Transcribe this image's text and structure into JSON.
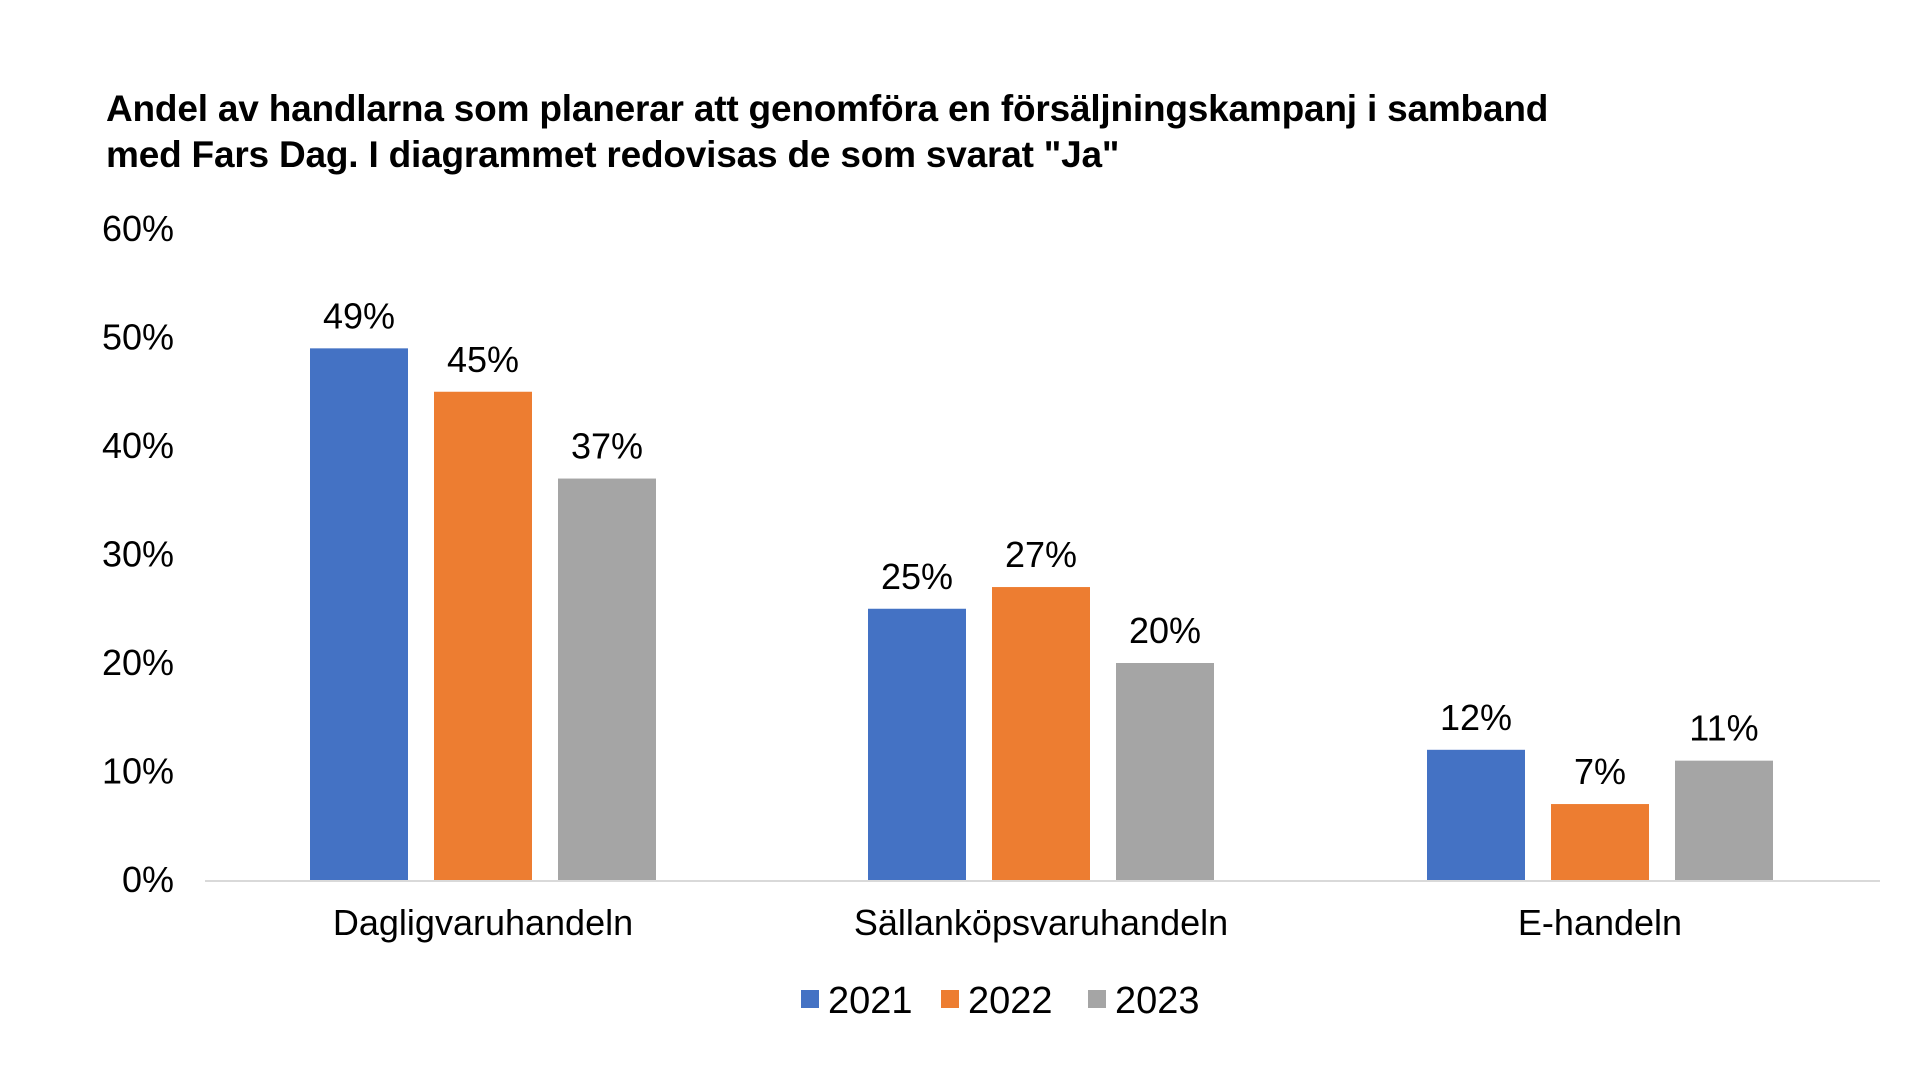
{
  "chart_data": {
    "type": "bar",
    "title_lines": [
      "Andel av handlarna som planerar att genomföra en försäljningskampanj i samband",
      "med Fars Dag. I diagrammet redovisas de som svarat \"Ja\""
    ],
    "categories": [
      "Dagligvaruhandeln",
      "Sällanköpsvaruhandeln",
      "E-handeln"
    ],
    "series": [
      {
        "name": "2021",
        "color": "#4472C4",
        "values": [
          49,
          25,
          12
        ],
        "labels": [
          "49%",
          "25%",
          "12%"
        ]
      },
      {
        "name": "2022",
        "color": "#ED7D31",
        "values": [
          45,
          27,
          7
        ],
        "labels": [
          "45%",
          "27%",
          "7%"
        ]
      },
      {
        "name": "2023",
        "color": "#A5A5A5",
        "values": [
          37,
          20,
          11
        ],
        "labels": [
          "37%",
          "20%",
          "11%"
        ]
      }
    ],
    "y_ticks": [
      0,
      10,
      20,
      30,
      40,
      50,
      60
    ],
    "y_tick_labels": [
      "0%",
      "10%",
      "20%",
      "30%",
      "40%",
      "50%",
      "60%"
    ],
    "ylim": [
      0,
      60
    ],
    "xlabel": "",
    "ylabel": "",
    "grid": false,
    "legend_position": "bottom"
  }
}
